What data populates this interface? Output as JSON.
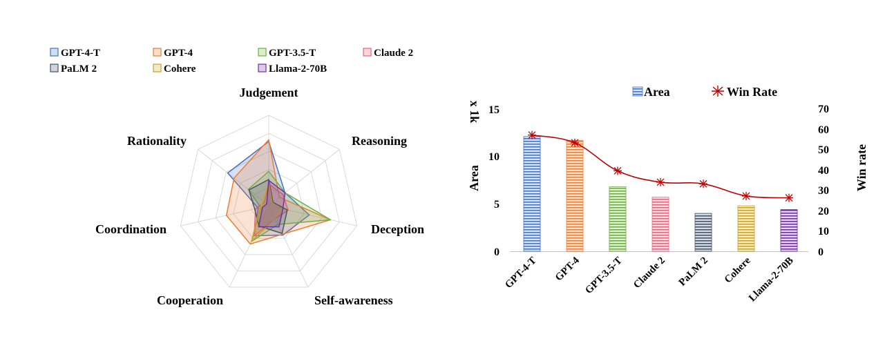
{
  "chart_data": [
    {
      "type": "radar",
      "axes": [
        "Judgement",
        "Reasoning",
        "Deception",
        "Self-awareness",
        "Cooperation",
        "Coordination",
        "Rationality"
      ],
      "rmax": 10,
      "series": [
        {
          "name": "GPT-4-T",
          "color": "#4472C4",
          "values": [
            7.1,
            2.3,
            4.6,
            3.6,
            3.7,
            1.2,
            5.8
          ]
        },
        {
          "name": "GPT-4",
          "color": "#ED7D31",
          "values": [
            7.3,
            1.5,
            7.0,
            3.5,
            4.7,
            4.8,
            4.9
          ]
        },
        {
          "name": "GPT-3.5-T",
          "color": "#70AD47",
          "values": [
            3.8,
            2.3,
            7.0,
            2.3,
            4.4,
            0.9,
            2.9
          ]
        },
        {
          "name": "Claude 2",
          "color": "#E8637A",
          "values": [
            2.4,
            2.0,
            2.2,
            1.6,
            3.7,
            1.5,
            0.6
          ]
        },
        {
          "name": "PaLM 2",
          "color": "#44546A",
          "values": [
            2.9,
            0.6,
            2.1,
            3.4,
            2.5,
            1.6,
            2.8
          ]
        },
        {
          "name": "Cohere",
          "color": "#C9A227",
          "values": [
            2.6,
            0.5,
            1.5,
            1.6,
            4.4,
            1.0,
            0.8
          ]
        },
        {
          "name": "Llama-2-70B",
          "color": "#7030A0",
          "values": [
            2.8,
            2.3,
            1.6,
            2.6,
            2.6,
            0.7,
            0.3
          ]
        }
      ]
    },
    {
      "type": "bar+line",
      "categories": [
        "GPT-4-T",
        "GPT-4",
        "GPT-3.5-T",
        "Claude 2",
        "PaLM 2",
        "Cohere",
        "Llama-2-70B"
      ],
      "series": [
        {
          "name": "Area",
          "axis": "left",
          "values": [
            12.1,
            11.7,
            6.8,
            5.7,
            4.0,
            4.8,
            4.4
          ]
        },
        {
          "name": "Win Rate",
          "axis": "right",
          "values": [
            57.2,
            53.4,
            39.6,
            34.0,
            33.2,
            27.2,
            26.3
          ]
        }
      ],
      "bar_colors": [
        "#4472C4",
        "#ED7D31",
        "#70AD47",
        "#E8637A",
        "#44546A",
        "#C9A227",
        "#7030A0"
      ],
      "line_color": "#C00000",
      "ylabel": "Area",
      "ylabel_unit": "x 1k",
      "y2label": "Win rate",
      "ylim": [
        0,
        15
      ],
      "yticks": [
        0,
        5,
        10,
        15
      ],
      "y2lim": [
        0,
        70
      ],
      "y2ticks": [
        0,
        10,
        20,
        30,
        40,
        50,
        60,
        70
      ]
    }
  ]
}
